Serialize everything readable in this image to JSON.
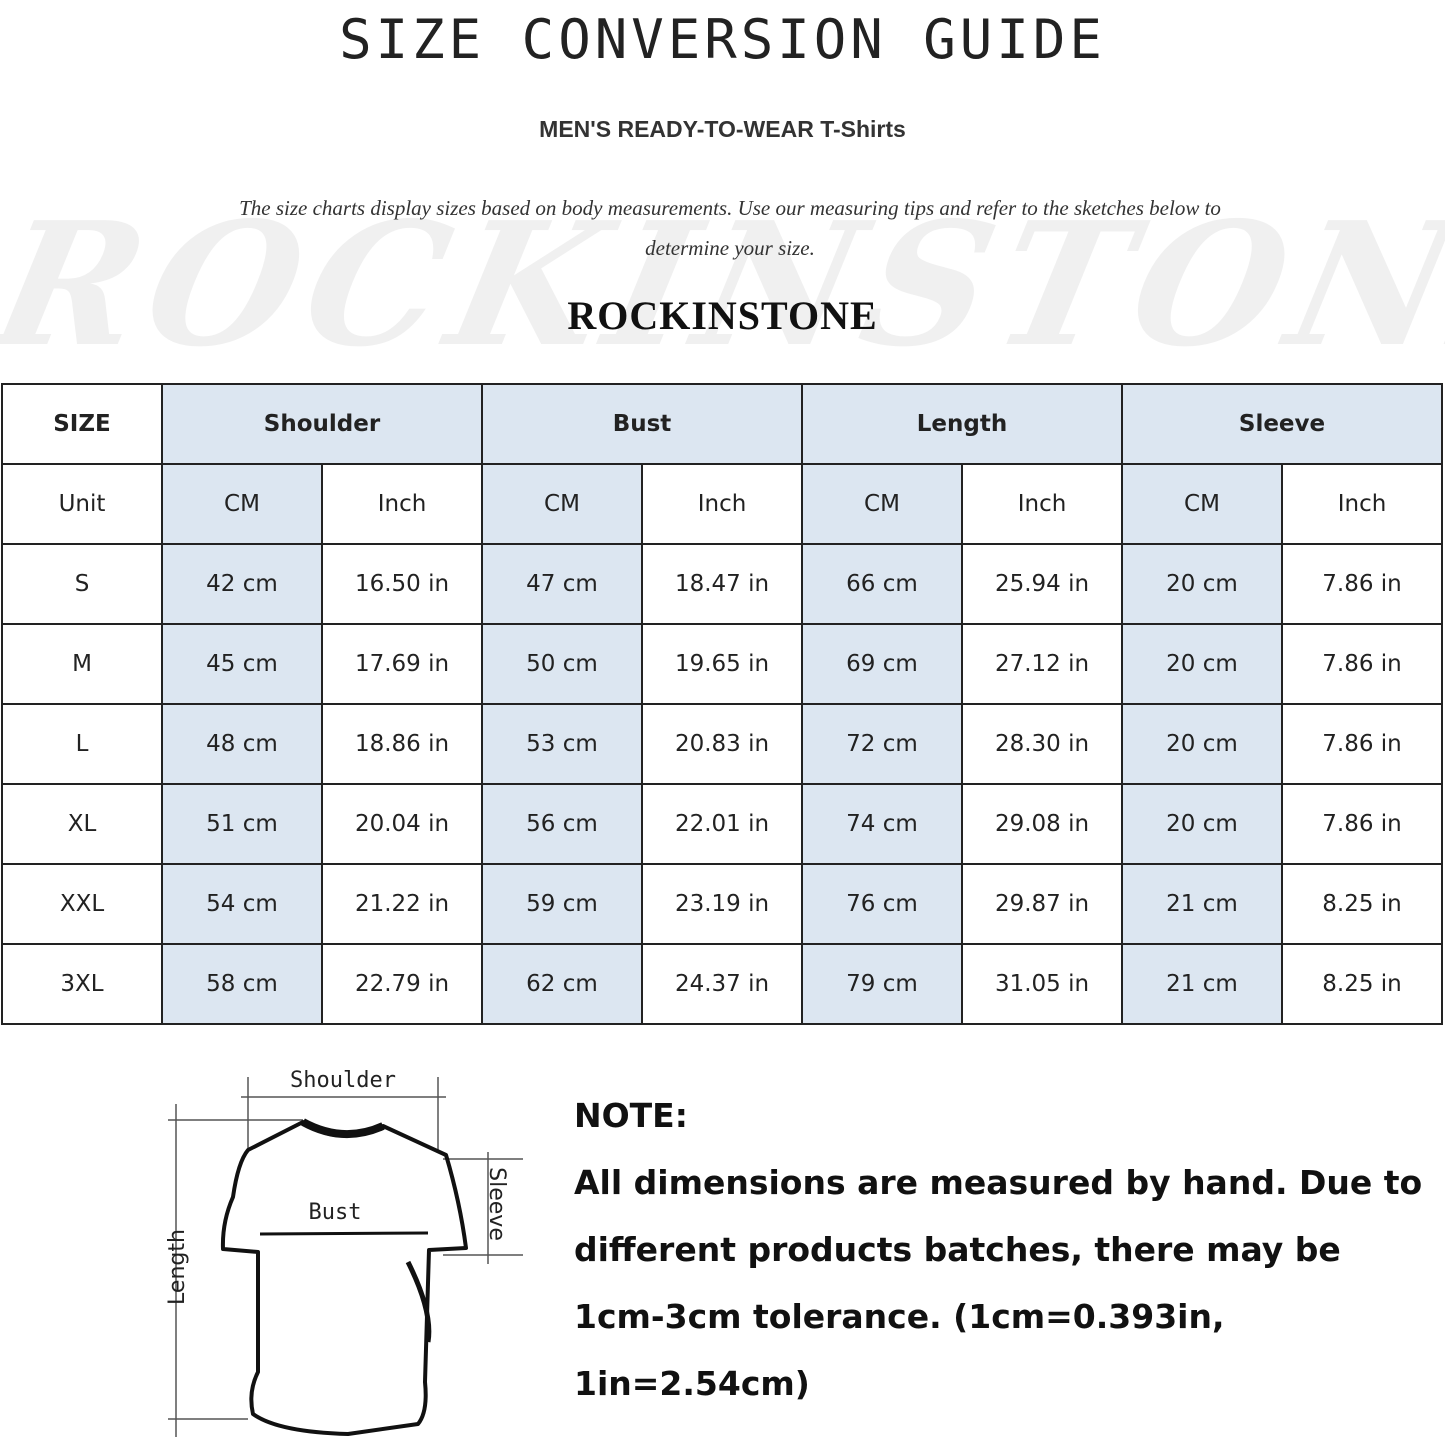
{
  "header": {
    "title": "SIZE CONVERSION GUIDE",
    "subtitle": "MEN'S READY-TO-WEAR T-Shirts",
    "intro": "The size charts display sizes based on body measurements. Use our measuring tips and refer to the sketches below to determine your size.",
    "brand": "ROCKINSTONE",
    "watermark": "ROCKINSTONE"
  },
  "colors": {
    "header_fill": "#dce6f1",
    "cm_fill": "#dce6f1",
    "border": "#222222"
  },
  "table": {
    "size_label": "SIZE",
    "unit_label": "Unit",
    "groups": [
      "Shoulder",
      "Bust",
      "Length",
      "Sleeve"
    ],
    "units": [
      "CM",
      "Inch",
      "CM",
      "Inch",
      "CM",
      "Inch",
      "CM",
      "Inch"
    ],
    "rows": [
      {
        "size": "S",
        "cells": [
          "42 cm",
          "16.50 in",
          "47 cm",
          "18.47  in",
          "66 cm",
          "25.94  in",
          "20 cm",
          "7.86  in"
        ]
      },
      {
        "size": "M",
        "cells": [
          "45 cm",
          "17.69  in",
          "50 cm",
          "19.65  in",
          "69 cm",
          "27.12  in",
          "20 cm",
          "7.86  in"
        ]
      },
      {
        "size": "L",
        "cells": [
          "48 cm",
          "18.86  in",
          "53 cm",
          "20.83  in",
          "72 cm",
          "28.30  in",
          "20 cm",
          "7.86  in"
        ]
      },
      {
        "size": "XL",
        "cells": [
          "51 cm",
          "20.04  in",
          "56 cm",
          "22.01  in",
          "74 cm",
          "29.08  in",
          "20 cm",
          "7.86  in"
        ]
      },
      {
        "size": "XXL",
        "cells": [
          "54 cm",
          "21.22  in",
          "59 cm",
          "23.19  in",
          "76 cm",
          "29.87  in",
          "21 cm",
          "8.25  in"
        ]
      },
      {
        "size": "3XL",
        "cells": [
          "58 cm",
          "22.79  in",
          "62 cm",
          "24.37  in",
          "79 cm",
          "31.05  in",
          "21 cm",
          "8.25  in"
        ]
      }
    ]
  },
  "sketch": {
    "shoulder": "Shoulder",
    "bust": "Bust",
    "length": "Length",
    "sleeve": "Sleeve"
  },
  "note": {
    "heading": "NOTE:",
    "lines": [
      "All dimensions are measured by hand. Due to",
      "different products batches, there may be",
      "1cm-3cm tolerance. (1cm=0.393in, 1in=2.54cm)"
    ]
  }
}
